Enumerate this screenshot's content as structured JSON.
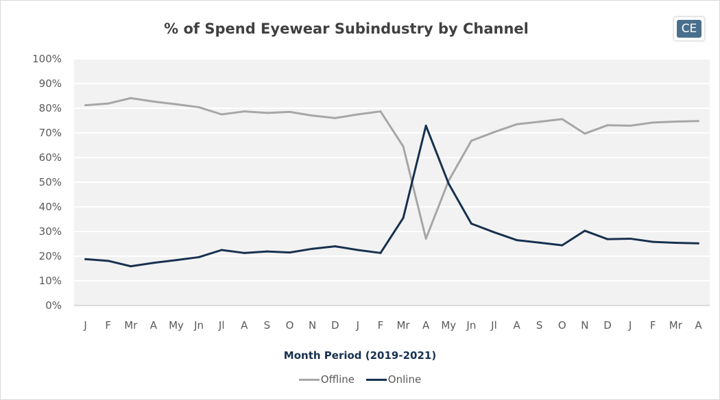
{
  "chart_data": {
    "type": "line",
    "title": "% of Spend Eyewear Subindustry by Channel",
    "xlabel": "Month Period (2019-2021)",
    "ylabel": "",
    "ylim": [
      0,
      100
    ],
    "y_ticks": [
      "0%",
      "10%",
      "20%",
      "30%",
      "40%",
      "50%",
      "60%",
      "70%",
      "80%",
      "90%",
      "100%"
    ],
    "categories": [
      "J",
      "F",
      "Mr",
      "A",
      "My",
      "Jn",
      "Jl",
      "A",
      "S",
      "O",
      "N",
      "D",
      "J",
      "F",
      "Mr",
      "A",
      "My",
      "Jn",
      "Jl",
      "A",
      "S",
      "O",
      "N",
      "D",
      "J",
      "F",
      "Mr",
      "A"
    ],
    "grid": true,
    "legend_position": "bottom",
    "series": [
      {
        "name": "Offline",
        "color": "#a6a6a6",
        "values": [
          81.2,
          81.9,
          84.1,
          82.7,
          81.6,
          80.4,
          77.5,
          78.7,
          78.1,
          78.5,
          77.0,
          76.0,
          77.5,
          78.7,
          64.5,
          27.1,
          50.6,
          66.8,
          70.3,
          73.5,
          74.5,
          75.6,
          69.7,
          73.1,
          72.9,
          74.2,
          74.6,
          74.8
        ]
      },
      {
        "name": "Online",
        "color": "#17304f",
        "values": [
          18.8,
          18.1,
          15.9,
          17.3,
          18.4,
          19.6,
          22.5,
          21.3,
          21.9,
          21.5,
          23.0,
          24.0,
          22.5,
          21.3,
          35.5,
          72.9,
          49.4,
          33.2,
          29.7,
          26.5,
          25.5,
          24.4,
          30.3,
          26.9,
          27.1,
          25.8,
          25.4,
          25.2
        ]
      }
    ]
  },
  "logo_text": "CE"
}
